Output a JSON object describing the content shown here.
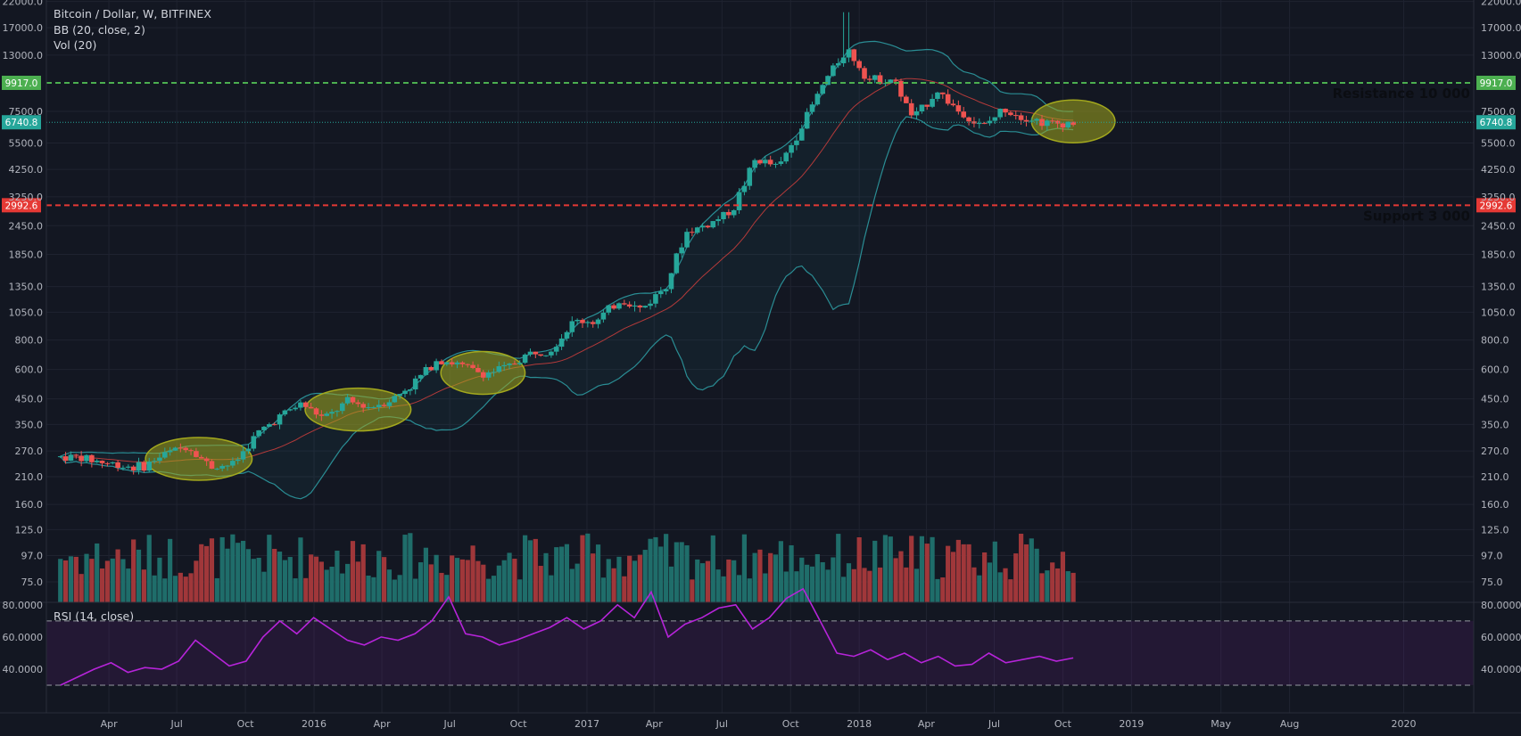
{
  "header": {
    "symbol": "Bitcoin / Dollar, W, BITFINEX",
    "bb_label": "BB (20, close, 2)",
    "vol_label": "Vol (20)",
    "rsi_label": "RSI (14, close)"
  },
  "colors": {
    "background": "#131722",
    "up": "#26a69a",
    "down": "#ef5350",
    "volume_up": "#1f6d6a",
    "volume_down": "#a0373a",
    "resistance": "#4caf50",
    "support": "#e53935",
    "highlight_ellipse": "#a3a81d",
    "rsi_line": "#b624d9",
    "bb_band": "#2a8d94",
    "bb_basis": "#b33a3a",
    "last_price": "#26a69a"
  },
  "chart_data": {
    "type": "candlestick",
    "price_scale": "log",
    "price_ticks": [
      "22000.0",
      "17000.0",
      "13000.0",
      "9917.0",
      "7500.0",
      "6740.8",
      "5500.0",
      "4250.0",
      "3250.0",
      "2992.6",
      "2450.0",
      "1850.0",
      "1350.0",
      "1050.0",
      "800.0",
      "600.0",
      "450.0",
      "350.0",
      "270.0",
      "210.0",
      "160.0",
      "125.0",
      "97.0",
      "75.0"
    ],
    "x_labels": [
      "Apr",
      "Jul",
      "Oct",
      "2016",
      "Apr",
      "Jul",
      "Oct",
      "2017",
      "Apr",
      "Jul",
      "Oct",
      "2018",
      "Apr",
      "Jul",
      "Oct",
      "2019",
      "May",
      "Aug",
      "2020"
    ],
    "levels": [
      {
        "price": 9917.0,
        "label": "9917.0",
        "annotation": "Resistance 10 000",
        "kind": "resistance"
      },
      {
        "price": 2992.6,
        "label": "2992.6",
        "annotation": "Support 3 000",
        "kind": "support"
      }
    ],
    "last_price": {
      "price": 6740.8,
      "label": "6740.8"
    },
    "monthly_closes": [
      {
        "date": "2015-02",
        "close": 255
      },
      {
        "date": "2015-03",
        "close": 245
      },
      {
        "date": "2015-04",
        "close": 235
      },
      {
        "date": "2015-05",
        "close": 230
      },
      {
        "date": "2015-06",
        "close": 262
      },
      {
        "date": "2015-07",
        "close": 285
      },
      {
        "date": "2015-08",
        "close": 232
      },
      {
        "date": "2015-09",
        "close": 237
      },
      {
        "date": "2015-10",
        "close": 315
      },
      {
        "date": "2015-11",
        "close": 378
      },
      {
        "date": "2015-12",
        "close": 430
      },
      {
        "date": "2016-01",
        "close": 370
      },
      {
        "date": "2016-02",
        "close": 437
      },
      {
        "date": "2016-03",
        "close": 416
      },
      {
        "date": "2016-04",
        "close": 448
      },
      {
        "date": "2016-05",
        "close": 530
      },
      {
        "date": "2016-06",
        "close": 670
      },
      {
        "date": "2016-07",
        "close": 624
      },
      {
        "date": "2016-08",
        "close": 575
      },
      {
        "date": "2016-09",
        "close": 609
      },
      {
        "date": "2016-10",
        "close": 700
      },
      {
        "date": "2016-11",
        "close": 742
      },
      {
        "date": "2016-12",
        "close": 963
      },
      {
        "date": "2017-01",
        "close": 965
      },
      {
        "date": "2017-02",
        "close": 1190
      },
      {
        "date": "2017-03",
        "close": 1080
      },
      {
        "date": "2017-04",
        "close": 1350
      },
      {
        "date": "2017-05",
        "close": 2300
      },
      {
        "date": "2017-06",
        "close": 2500
      },
      {
        "date": "2017-07",
        "close": 2870
      },
      {
        "date": "2017-08",
        "close": 4700
      },
      {
        "date": "2017-09",
        "close": 4340
      },
      {
        "date": "2017-10",
        "close": 6450
      },
      {
        "date": "2017-11",
        "close": 9950
      },
      {
        "date": "2017-12",
        "close": 13900
      },
      {
        "date": "2018-01",
        "close": 10220
      },
      {
        "date": "2018-02",
        "close": 10330
      },
      {
        "date": "2018-03",
        "close": 6930
      },
      {
        "date": "2018-04",
        "close": 9240
      },
      {
        "date": "2018-05",
        "close": 7500
      },
      {
        "date": "2018-06",
        "close": 6390
      },
      {
        "date": "2018-07",
        "close": 7730
      },
      {
        "date": "2018-08",
        "close": 7030
      },
      {
        "date": "2018-09",
        "close": 6630
      },
      {
        "date": "2018-10",
        "close": 6740
      }
    ],
    "highlight_zones": [
      {
        "from": "2015-06",
        "to": "2015-09",
        "center_price": 250
      },
      {
        "from": "2016-01",
        "to": "2016-04",
        "center_price": 405
      },
      {
        "from": "2016-07",
        "to": "2016-09",
        "center_price": 580
      },
      {
        "from": "2018-09",
        "to": "2018-11",
        "center_price": 6800
      }
    ],
    "rsi": {
      "ticks": [
        "80.0000",
        "60.0000",
        "40.0000"
      ],
      "overbought": 70,
      "oversold": 30,
      "values": [
        30,
        35,
        40,
        44,
        38,
        41,
        40,
        45,
        58,
        50,
        42,
        45,
        60,
        70,
        62,
        72,
        65,
        58,
        55,
        60,
        58,
        62,
        70,
        85,
        62,
        60,
        55,
        58,
        62,
        66,
        72,
        65,
        70,
        80,
        72,
        88,
        60,
        68,
        72,
        78,
        80,
        65,
        72,
        84,
        90,
        70,
        50,
        48,
        52,
        46,
        50,
        44,
        48,
        42,
        43,
        50,
        44,
        46,
        48,
        45,
        47
      ]
    }
  },
  "overlay": {
    "resistance_annotation": "Resistance 10 000",
    "support_annotation": "Support 3 000"
  }
}
